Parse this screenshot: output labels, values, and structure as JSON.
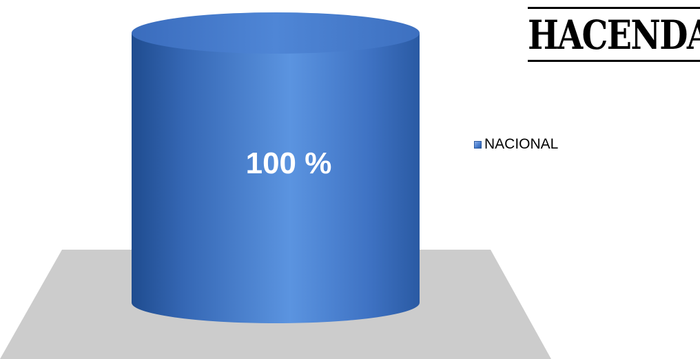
{
  "logo": {
    "text": "HACENDADO"
  },
  "chart_data": {
    "type": "bar",
    "title": "",
    "xlabel": "",
    "ylabel": "",
    "categories": [
      ""
    ],
    "series": [
      {
        "name": "NACIONAL",
        "values": [
          100
        ],
        "data_labels": [
          "100 %"
        ]
      }
    ],
    "ylim": [
      0,
      100
    ],
    "legend_position": "right",
    "grid": false,
    "colors": {
      "bar": "#4a7fd0",
      "floor": "#cccccc"
    }
  }
}
